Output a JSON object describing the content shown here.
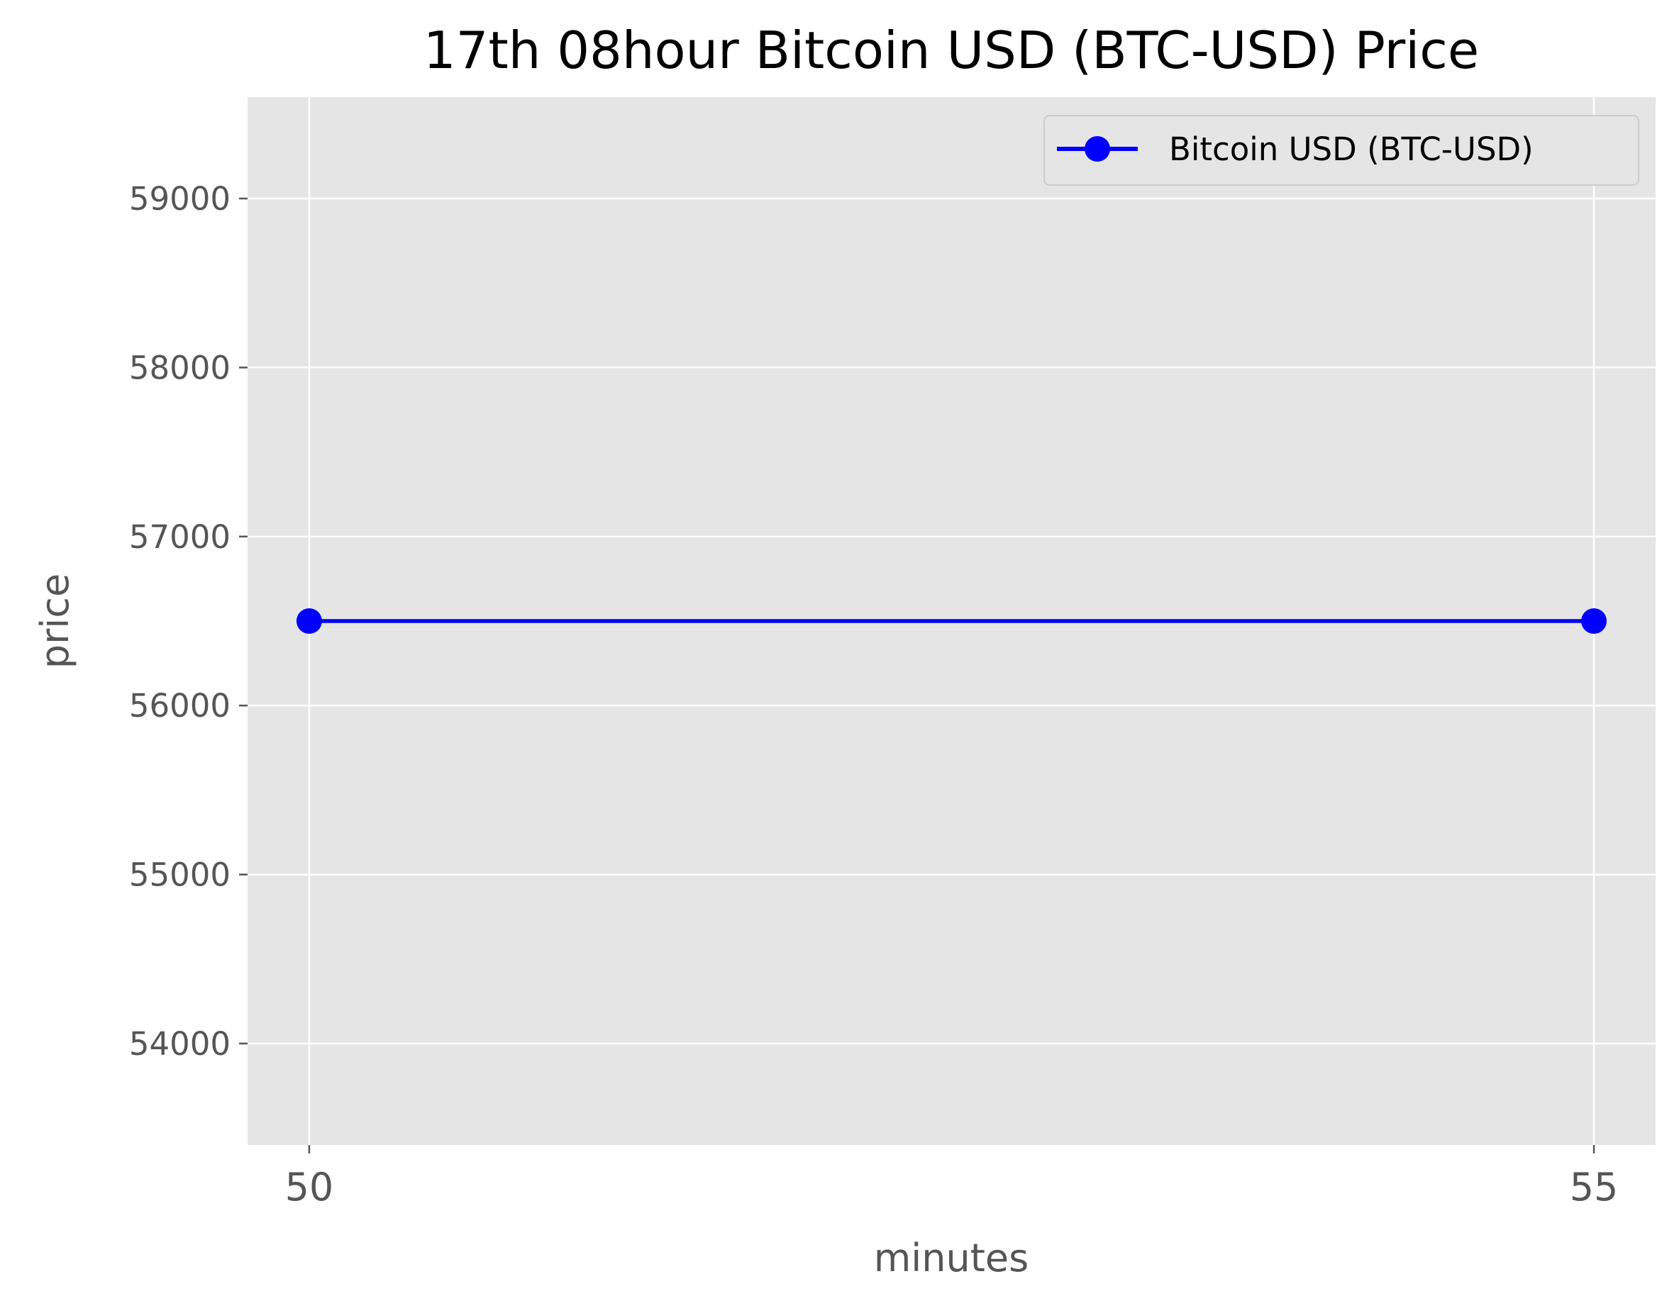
{
  "chart_data": {
    "type": "line",
    "title": "17th 08hour Bitcoin USD (BTC-USD) Price",
    "xlabel": "minutes",
    "ylabel": "price",
    "x": [
      50,
      55
    ],
    "xticks": [
      50,
      55
    ],
    "xtick_labels": [
      "50",
      "55"
    ],
    "xlim": [
      49.76,
      55.24
    ],
    "yticks": [
      54000,
      55000,
      56000,
      57000,
      58000,
      59000
    ],
    "ytick_labels": [
      "54000",
      "55000",
      "56000",
      "57000",
      "58000",
      "59000"
    ],
    "ylim": [
      53400,
      59600
    ],
    "series": [
      {
        "name": "Bitcoin USD (BTC-USD)",
        "color": "#0000ff",
        "marker": "circle",
        "values": [
          56500,
          56500
        ]
      }
    ],
    "legend_position": "top-right",
    "grid": true,
    "style": {
      "plot_background": "#e5e5e5",
      "grid_color": "#ffffff"
    }
  }
}
